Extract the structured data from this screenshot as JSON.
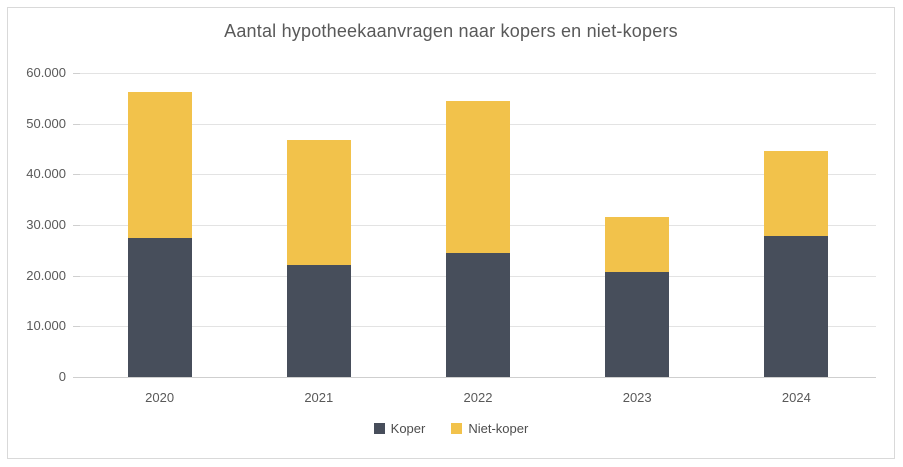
{
  "chart_data": {
    "type": "bar",
    "stacked": true,
    "title": "Aantal hypotheekaanvragen naar kopers en niet-kopers",
    "categories": [
      "2020",
      "2021",
      "2022",
      "2023",
      "2024"
    ],
    "series": [
      {
        "name": "Koper",
        "color": "#474E5B",
        "values": [
          27500,
          22200,
          24500,
          20800,
          27800
        ]
      },
      {
        "name": "Niet-koper",
        "color": "#F2C24B",
        "values": [
          28800,
          24600,
          30000,
          10800,
          16900
        ]
      }
    ],
    "ylim": [
      0,
      60000
    ],
    "yticks": [
      {
        "value": 0,
        "label": "0"
      },
      {
        "value": 10000,
        "label": "10.000"
      },
      {
        "value": 20000,
        "label": "20.000"
      },
      {
        "value": 30000,
        "label": "30.000"
      },
      {
        "value": 40000,
        "label": "40.000"
      },
      {
        "value": 50000,
        "label": "50.000"
      },
      {
        "value": 60000,
        "label": "60.000"
      }
    ],
    "xlabel": "",
    "ylabel": "",
    "grid": "horizontal",
    "legend_position": "bottom"
  },
  "style": {
    "background": "#FFFFFF",
    "frame_border": "#D9D9D9",
    "gridline_color": "#E3E3E3",
    "axis_line_color": "#CFCFCF",
    "title_color": "#595959",
    "tick_label_color": "#595959",
    "legend_text_color": "#4D4D4D"
  }
}
